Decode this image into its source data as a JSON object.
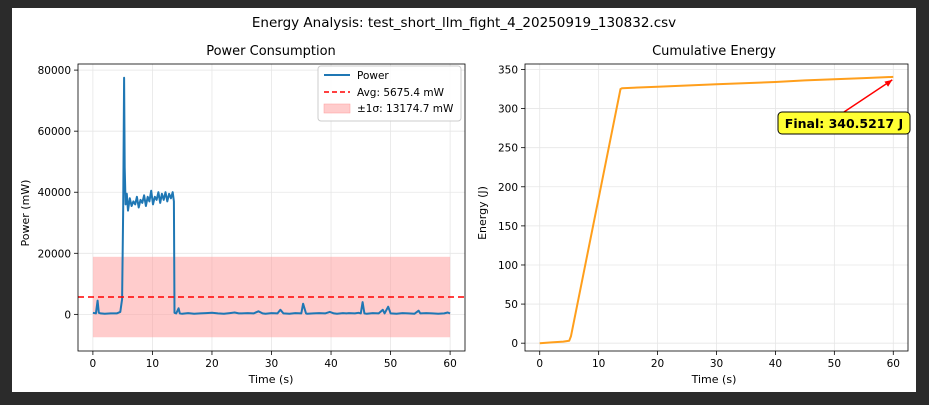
{
  "figure": {
    "suptitle": "Energy Analysis: test_short_llm_fight_4_20250919_130832.csv"
  },
  "chart_data": [
    {
      "type": "line",
      "title": "Power Consumption",
      "xlabel": "Time (s)",
      "ylabel": "Power (mW)",
      "xlim": [
        -2.5,
        62.5
      ],
      "ylim": [
        -12000,
        82000
      ],
      "xticks": [
        "0",
        "10",
        "20",
        "30",
        "40",
        "50",
        "60"
      ],
      "yticks": [
        "0",
        "20000",
        "40000",
        "60000",
        "80000"
      ],
      "grid": true,
      "legend_position": "top-right",
      "series": [
        {
          "name": "Power",
          "color": "#1f77b4",
          "x": [
            0,
            0.5,
            0.8,
            1.0,
            1.3,
            2.0,
            3.0,
            4.0,
            4.6,
            4.9,
            5.1,
            5.25,
            5.35,
            5.5,
            5.7,
            5.9,
            6.2,
            6.5,
            6.8,
            7.1,
            7.4,
            7.7,
            8.0,
            8.3,
            8.6,
            8.9,
            9.2,
            9.5,
            9.8,
            10.1,
            10.4,
            10.7,
            11.0,
            11.3,
            11.6,
            11.9,
            12.2,
            12.5,
            12.8,
            13.1,
            13.4,
            13.6,
            13.7,
            14.0,
            14.4,
            14.6,
            15.0,
            16,
            17,
            18,
            19,
            20,
            21,
            22,
            23,
            23.8,
            24.5,
            25,
            26,
            27,
            27.8,
            28.5,
            29,
            30,
            31,
            31.5,
            32,
            33,
            34,
            35,
            35.3,
            35.8,
            36,
            37,
            38,
            39,
            39.8,
            40.5,
            41,
            42,
            42.6,
            43,
            44,
            44.6,
            45,
            45.3,
            45.6,
            46,
            47,
            48,
            48.7,
            49,
            49.6,
            50,
            51,
            52,
            53,
            54,
            54.7,
            55,
            56,
            57,
            58,
            59,
            59.6,
            60
          ],
          "values": [
            500,
            300,
            4500,
            500,
            300,
            200,
            300,
            300,
            800,
            5000,
            35000,
            77500,
            48000,
            36000,
            39500,
            34000,
            38000,
            35500,
            37000,
            36000,
            38500,
            35000,
            37500,
            36500,
            39000,
            35500,
            38500,
            37000,
            40500,
            36000,
            38500,
            37500,
            40000,
            36500,
            39500,
            37500,
            40000,
            37000,
            39500,
            38000,
            40000,
            37000,
            500,
            300,
            2000,
            300,
            200,
            400,
            200,
            300,
            400,
            500,
            300,
            200,
            400,
            600,
            300,
            300,
            400,
            300,
            1000,
            300,
            200,
            400,
            300,
            1500,
            300,
            200,
            400,
            300,
            3500,
            300,
            200,
            300,
            400,
            300,
            800,
            300,
            200,
            400,
            300,
            400,
            300,
            500,
            300,
            4000,
            300,
            200,
            400,
            300,
            1500,
            300,
            2500,
            300,
            200,
            400,
            300,
            200,
            1200,
            300,
            400,
            300,
            200,
            300,
            600,
            300
          ]
        },
        {
          "name": "Avg: 5675.4 mW",
          "color": "#ff0000",
          "style": "dashed",
          "value": 5675.4
        },
        {
          "name": "±1σ: 13174.7 mW",
          "color": "#ffb3b3",
          "style": "band",
          "lower": -7499.3,
          "upper": 18850.1,
          "x": [
            0,
            60
          ]
        }
      ]
    },
    {
      "type": "line",
      "title": "Cumulative Energy",
      "xlabel": "Time (s)",
      "ylabel": "Energy (J)",
      "xlim": [
        -2.5,
        62.5
      ],
      "ylim": [
        -10,
        357
      ],
      "xticks": [
        "0",
        "10",
        "20",
        "30",
        "40",
        "50",
        "60"
      ],
      "yticks": [
        "0",
        "50",
        "100",
        "150",
        "200",
        "250",
        "300",
        "350"
      ],
      "grid": true,
      "series": [
        {
          "name": "Energy",
          "color": "#ff9f1c",
          "x": [
            0,
            2,
            4,
            5,
            5.3,
            13.7,
            14,
            20,
            30,
            40,
            45,
            50,
            55,
            60
          ],
          "values": [
            0,
            1,
            2,
            3,
            9,
            325,
            326,
            328,
            331,
            334,
            336,
            337.5,
            339,
            340.5
          ]
        }
      ],
      "annotation": {
        "text": "Final: 340.5217 J",
        "x": 60,
        "y": 340.5217,
        "box_color": "#ffff33",
        "arrow_color": "#ff0000"
      }
    }
  ]
}
